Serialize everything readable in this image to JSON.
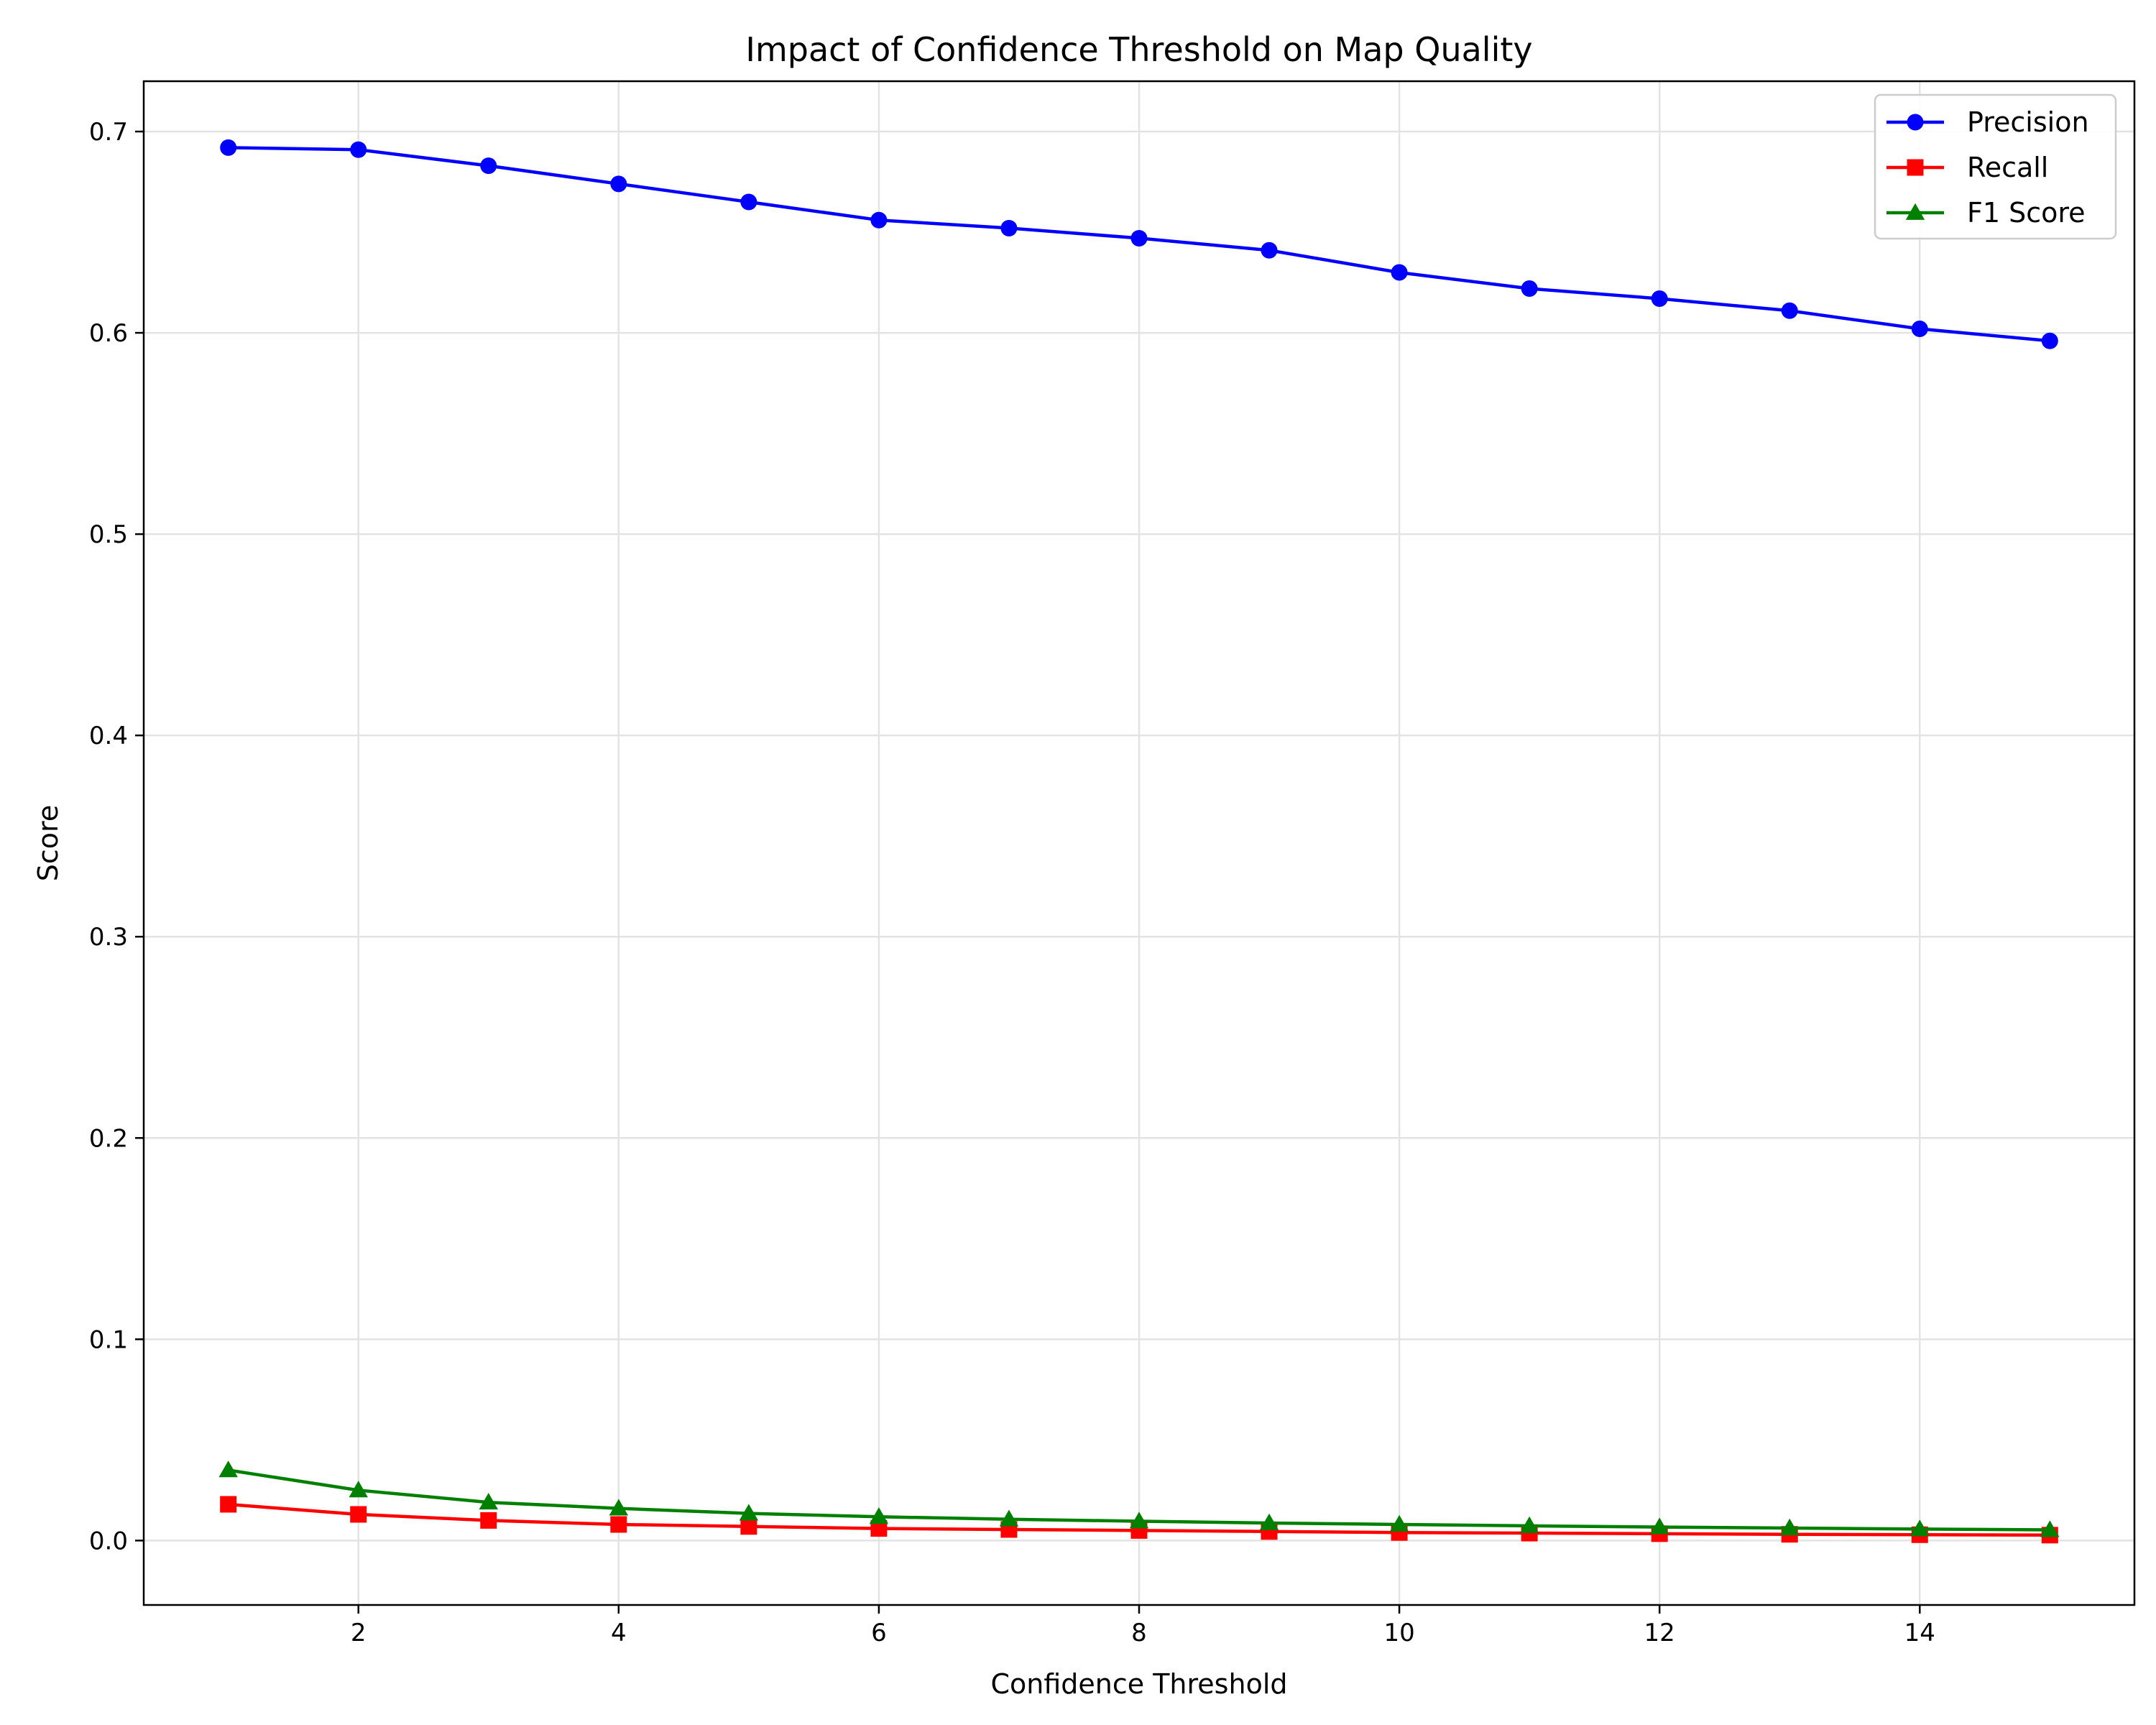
{
  "chart_data": {
    "type": "line",
    "title": "Impact of Confidence Threshold on Map Quality",
    "xlabel": "Confidence Threshold",
    "ylabel": "Score",
    "x": [
      1,
      2,
      3,
      4,
      5,
      6,
      7,
      8,
      9,
      10,
      11,
      12,
      13,
      14,
      15
    ],
    "xlim": [
      0.35,
      15.65
    ],
    "ylim": [
      -0.032,
      0.725
    ],
    "xticks": [
      2,
      4,
      6,
      8,
      10,
      12,
      14
    ],
    "yticks": [
      0.0,
      0.1,
      0.2,
      0.3,
      0.4,
      0.5,
      0.6,
      0.7
    ],
    "grid": true,
    "legend_position": "top-right",
    "series": [
      {
        "name": "Precision",
        "color": "#0000ff",
        "marker": "circle",
        "values": [
          0.692,
          0.691,
          0.683,
          0.674,
          0.665,
          0.656,
          0.652,
          0.647,
          0.641,
          0.63,
          0.622,
          0.617,
          0.611,
          0.602,
          0.596
        ]
      },
      {
        "name": "Recall",
        "color": "#ff0000",
        "marker": "square",
        "values": [
          0.018,
          0.013,
          0.01,
          0.008,
          0.007,
          0.006,
          0.0055,
          0.005,
          0.0045,
          0.004,
          0.0037,
          0.0034,
          0.0031,
          0.0029,
          0.0027
        ]
      },
      {
        "name": "F1 Score",
        "color": "#008000",
        "marker": "triangle",
        "values": [
          0.035,
          0.025,
          0.019,
          0.016,
          0.0135,
          0.0118,
          0.0106,
          0.0096,
          0.0087,
          0.008,
          0.0073,
          0.0067,
          0.0062,
          0.0057,
          0.0053
        ]
      }
    ]
  }
}
